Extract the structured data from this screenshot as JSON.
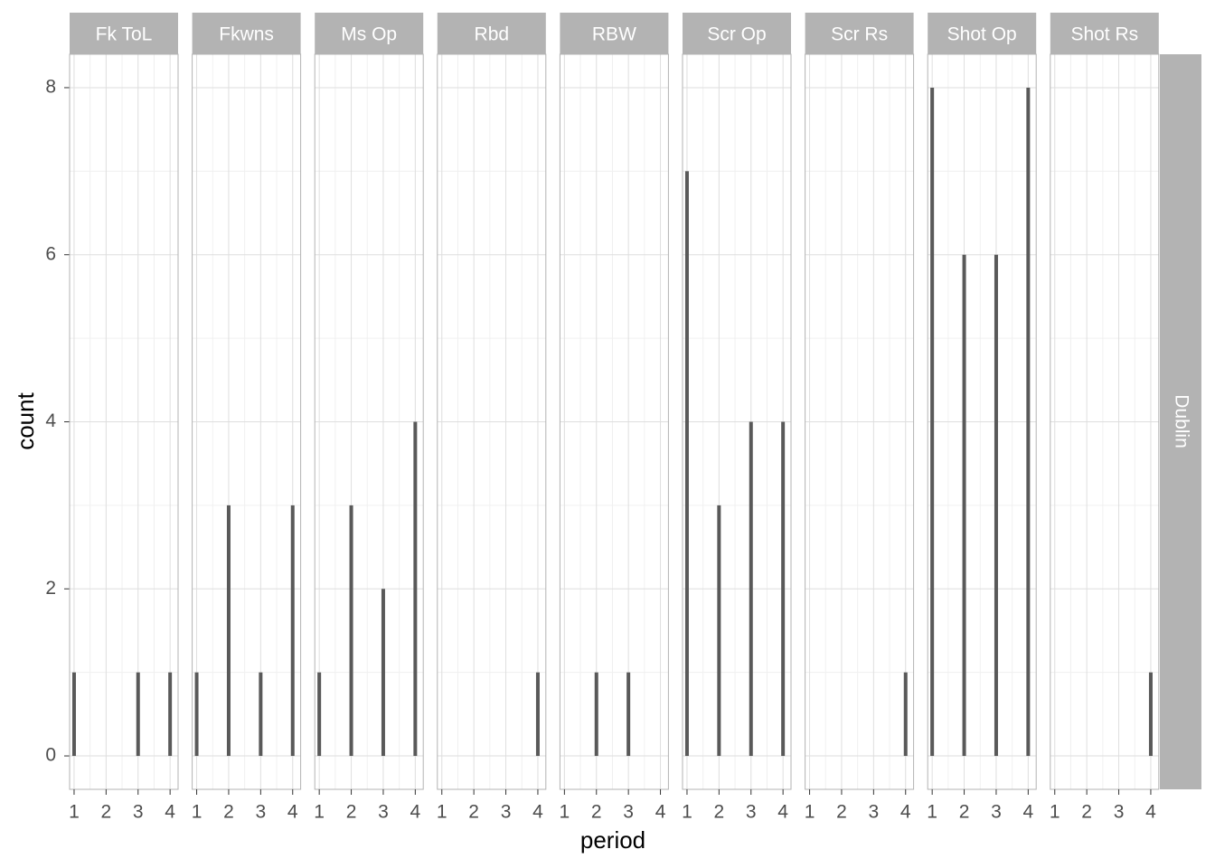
{
  "chart_data": {
    "type": "bar",
    "x_label": "period",
    "y_label": "count",
    "row_strip": "Dublin",
    "color": "#595959",
    "grid": true,
    "xlim": [
      0.86,
      4.25
    ],
    "xticks": [
      1,
      2,
      3,
      4
    ],
    "ylim": [
      -0.4,
      8.4
    ],
    "yticks": [
      0,
      2,
      4,
      6,
      8
    ],
    "facets": [
      {
        "label": "Fk ToL",
        "x": [
          1,
          3,
          4
        ],
        "values": [
          1,
          1,
          1
        ]
      },
      {
        "label": "Fkwns",
        "x": [
          1,
          2,
          3,
          4
        ],
        "values": [
          1,
          3,
          1,
          3
        ]
      },
      {
        "label": "Ms Op",
        "x": [
          1,
          2,
          3,
          4
        ],
        "values": [
          1,
          3,
          2,
          4
        ]
      },
      {
        "label": "Rbd",
        "x": [
          4
        ],
        "values": [
          1
        ]
      },
      {
        "label": "RBW",
        "x": [
          2,
          3
        ],
        "values": [
          1,
          1
        ]
      },
      {
        "label": "Scr Op",
        "x": [
          1,
          2,
          3,
          4
        ],
        "values": [
          7,
          3,
          4,
          4
        ]
      },
      {
        "label": "Scr Rs",
        "x": [
          4
        ],
        "values": [
          1
        ]
      },
      {
        "label": "Shot Op",
        "x": [
          1,
          2,
          3,
          4
        ],
        "values": [
          8,
          6,
          6,
          8
        ]
      },
      {
        "label": "Shot Rs",
        "x": [
          4
        ],
        "values": [
          1
        ]
      }
    ]
  }
}
